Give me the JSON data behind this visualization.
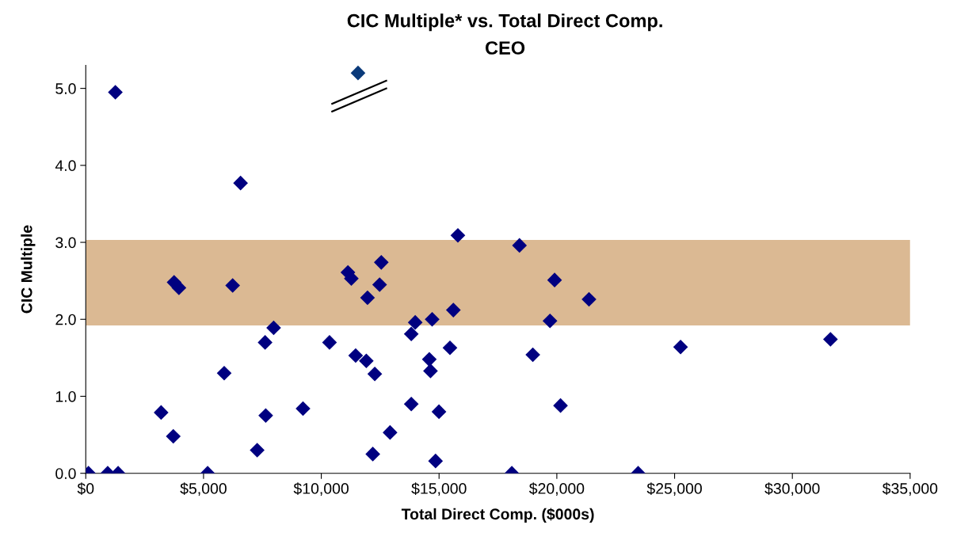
{
  "chart_data": {
    "type": "scatter",
    "title": "CIC Multiple* vs. Total Direct Comp.",
    "subtitle": "CEO",
    "xlabel": "Total Direct Comp. ($000s)",
    "ylabel": "CIC Multiple",
    "series": [
      {
        "color": "#000080",
        "x": [
          1257,
          6572,
          3750,
          3955,
          6236,
          11131,
          11276,
          12547,
          12476,
          11962,
          7977,
          7614,
          10349,
          11458,
          11911,
          12271,
          5877,
          3199,
          3716,
          7641,
          9223,
          7278,
          12187,
          12919,
          115,
          931,
          1374,
          5174,
          15799,
          18414,
          19905,
          21366,
          15607,
          14707,
          13988,
          19710,
          13820,
          15463,
          14586,
          14636,
          18981,
          25254,
          13820,
          14996,
          20157,
          14851,
          18090,
          23453,
          31618
        ],
        "values": [
          4.95,
          3.77,
          2.48,
          2.41,
          2.44,
          2.61,
          2.53,
          2.74,
          2.45,
          2.28,
          1.89,
          1.7,
          1.7,
          1.53,
          1.46,
          1.29,
          1.3,
          0.79,
          0.48,
          0.75,
          0.84,
          0.3,
          0.25,
          0.53,
          0,
          0,
          0,
          0,
          3.09,
          2.96,
          2.51,
          2.26,
          2.12,
          2.0,
          1.96,
          1.98,
          1.81,
          1.63,
          1.48,
          1.33,
          1.54,
          1.64,
          0.9,
          0.8,
          0.88,
          0.16,
          0,
          0,
          1.74
        ]
      },
      {
        "color": "#0a3a7a",
        "x": [
          11560
        ],
        "values": [
          5.2
        ]
      }
    ],
    "marker": "diamond",
    "grid": false,
    "legend": false,
    "xlim": [
      0,
      35000
    ],
    "ylim": [
      0,
      5.3
    ],
    "xticks": [
      {
        "value": 0,
        "label": "$0"
      },
      {
        "value": 5000,
        "label": "$5,000"
      },
      {
        "value": 10000,
        "label": "$10,000"
      },
      {
        "value": 15000,
        "label": "$15,000"
      },
      {
        "value": 20000,
        "label": "$20,000"
      },
      {
        "value": 25000,
        "label": "$25,000"
      },
      {
        "value": 30000,
        "label": "$30,000"
      },
      {
        "value": 35000,
        "label": "$35,000"
      }
    ],
    "yticks": [
      {
        "value": 0,
        "label": "0.0"
      },
      {
        "value": 1,
        "label": "1.0"
      },
      {
        "value": 2,
        "label": "2.0"
      },
      {
        "value": 3,
        "label": "3.0"
      },
      {
        "value": 4,
        "label": "4.0"
      },
      {
        "value": 5,
        "label": "5.0"
      }
    ],
    "bands": [
      {
        "axis": "y",
        "from": 1.92,
        "to": 3.03,
        "color": "#dbb993"
      }
    ]
  }
}
